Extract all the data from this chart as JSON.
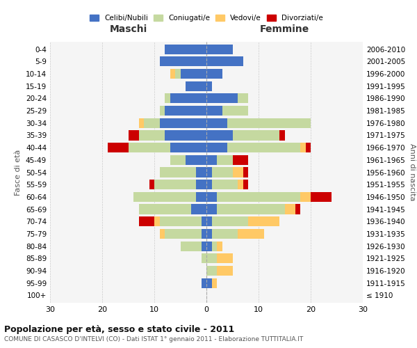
{
  "age_groups": [
    "100+",
    "95-99",
    "90-94",
    "85-89",
    "80-84",
    "75-79",
    "70-74",
    "65-69",
    "60-64",
    "55-59",
    "50-54",
    "45-49",
    "40-44",
    "35-39",
    "30-34",
    "25-29",
    "20-24",
    "15-19",
    "10-14",
    "5-9",
    "0-4"
  ],
  "birth_years": [
    "≤ 1910",
    "1911-1915",
    "1916-1920",
    "1921-1925",
    "1926-1930",
    "1931-1935",
    "1936-1940",
    "1941-1945",
    "1946-1950",
    "1951-1955",
    "1956-1960",
    "1961-1965",
    "1966-1970",
    "1971-1975",
    "1976-1980",
    "1981-1985",
    "1986-1990",
    "1991-1995",
    "1996-2000",
    "2001-2005",
    "2006-2010"
  ],
  "males": {
    "celibi": [
      0,
      1,
      0,
      0,
      1,
      1,
      1,
      3,
      2,
      2,
      2,
      4,
      7,
      8,
      9,
      8,
      7,
      4,
      5,
      9,
      8
    ],
    "coniugati": [
      0,
      0,
      0,
      1,
      4,
      7,
      8,
      10,
      12,
      8,
      7,
      3,
      8,
      5,
      3,
      1,
      1,
      0,
      1,
      0,
      0
    ],
    "vedovi": [
      0,
      0,
      0,
      0,
      0,
      1,
      1,
      0,
      0,
      0,
      0,
      0,
      0,
      0,
      1,
      0,
      0,
      0,
      1,
      0,
      0
    ],
    "divorziati": [
      0,
      0,
      0,
      0,
      0,
      0,
      3,
      0,
      0,
      1,
      0,
      0,
      4,
      2,
      0,
      0,
      0,
      0,
      0,
      0,
      0
    ]
  },
  "females": {
    "nubili": [
      0,
      1,
      0,
      0,
      1,
      1,
      1,
      2,
      2,
      1,
      1,
      2,
      4,
      5,
      4,
      3,
      6,
      1,
      3,
      7,
      5
    ],
    "coniugate": [
      0,
      0,
      2,
      2,
      1,
      5,
      7,
      13,
      16,
      5,
      4,
      3,
      14,
      9,
      16,
      5,
      2,
      0,
      0,
      0,
      0
    ],
    "vedove": [
      0,
      1,
      3,
      3,
      1,
      5,
      6,
      2,
      2,
      1,
      2,
      0,
      1,
      0,
      0,
      0,
      0,
      0,
      0,
      0,
      0
    ],
    "divorziate": [
      0,
      0,
      0,
      0,
      0,
      0,
      0,
      1,
      4,
      1,
      1,
      3,
      1,
      1,
      0,
      0,
      0,
      0,
      0,
      0,
      0
    ]
  },
  "colors": {
    "celibi": "#4472c4",
    "coniugati": "#c5d9a0",
    "vedovi": "#ffc966",
    "divorziati": "#cc0000"
  },
  "title": "Popolazione per età, sesso e stato civile - 2011",
  "subtitle": "COMUNE DI CASASCO D'INTELVI (CO) - Dati ISTAT 1° gennaio 2011 - Elaborazione TUTTITALIA.IT",
  "xlabel_left": "Maschi",
  "xlabel_right": "Femmine",
  "ylabel_left": "Fasce di età",
  "ylabel_right": "Anni di nascita",
  "xlim": 30,
  "background_color": "#ffffff",
  "grid_color": "#cccccc",
  "legend_labels": [
    "Celibi/Nubili",
    "Coniugati/e",
    "Vedovi/e",
    "Divorziati/e"
  ]
}
